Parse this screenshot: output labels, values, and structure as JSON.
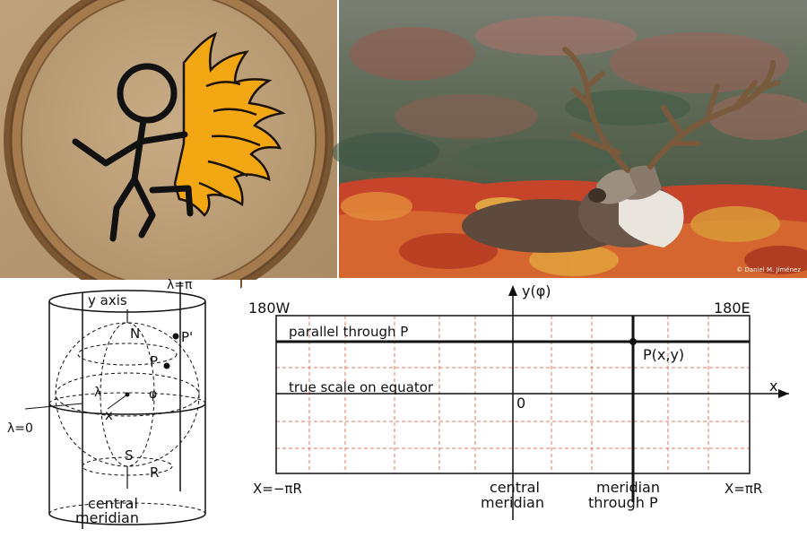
{
  "cylinder_figure": {
    "axis_label": "y  axis",
    "lambda_pi": "λ=π",
    "north": "N",
    "p_prime": "P'",
    "p": "P",
    "lambda_phi": "λ",
    "phi_symbol": "φ",
    "x_label": "x",
    "lambda_zero": "λ=0",
    "south": "S",
    "r": "R",
    "central_meridian_line1": "central",
    "central_meridian_line2": "meridian"
  },
  "grid_figure": {
    "y_axis_label": "y(φ)",
    "west_label": "180W",
    "east_label": "180E",
    "parallel_label": "parallel through P",
    "point_label": "P(x,y)",
    "equator_label": "true scale on equator",
    "x_axis_label": "x",
    "origin_label": "0",
    "x_min_label": "X=−πR",
    "x_max_label": "X=πR",
    "central_meridian_line1": "central",
    "central_meridian_line2": "meridian",
    "meridian_p_line1": "meridian",
    "meridian_p_line2": "through P"
  },
  "colors": {
    "patch_fabric": "#b89a72",
    "patch_border": "#8a6238",
    "flame": "#f3a712",
    "grid_dash": "#e07a5f",
    "tundra_red": "#c6452a"
  },
  "photo_credit": "© Daniel M. Jiménez"
}
